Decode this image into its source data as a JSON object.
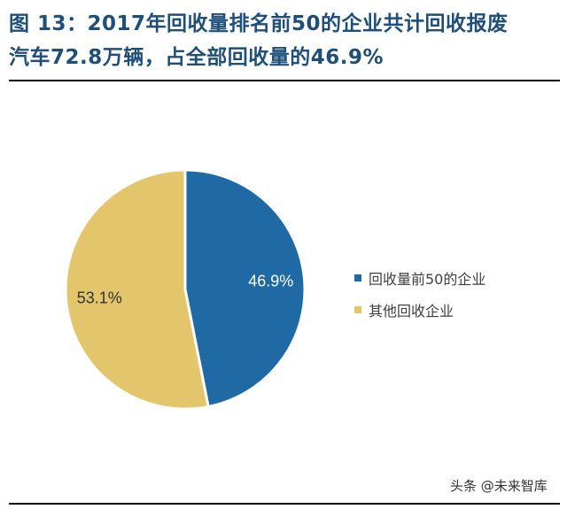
{
  "header": {
    "title_line1": "图  13：2017年回收量排名前50的企业共计回收报废",
    "title_line2": "汽车72.8万辆，占全部回收量的46.9%"
  },
  "chart_data": {
    "type": "pie",
    "slices": [
      {
        "name": "回收量前50的企业",
        "value": 46.9,
        "label": "46.9%",
        "color": "#1f6aa5",
        "label_color": "#ffffff"
      },
      {
        "name": "其他回收企业",
        "value": 53.1,
        "label": "53.1%",
        "color": "#e3c56b",
        "label_color": "#333333"
      }
    ],
    "legend_position": "right"
  },
  "watermark": "头条 @未来智库"
}
